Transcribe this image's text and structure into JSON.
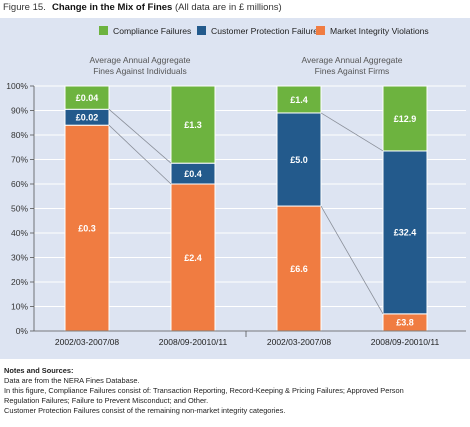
{
  "figure": {
    "number": "Figure 15.",
    "title": "Change in the Mix of Fines",
    "subtitle": "(All data are in £ millions)"
  },
  "chart_data": {
    "type": "bar",
    "stacked": true,
    "percent_scale": true,
    "legend": {
      "position": "top",
      "entries": [
        {
          "name": "Compliance Failures",
          "color": "#6db33f"
        },
        {
          "name": "Customer Protection Failures",
          "color": "#235a8c"
        },
        {
          "name": "Market Integrity Violations",
          "color": "#f07c41"
        }
      ]
    },
    "y_axis": {
      "range": [
        0,
        100
      ],
      "ticks": [
        "0%",
        "10%",
        "20%",
        "30%",
        "40%",
        "50%",
        "60%",
        "70%",
        "80%",
        "90%",
        "100%"
      ],
      "gridlines": true
    },
    "groups": [
      {
        "title": "Average Annual Aggregate Fines Against Individuals",
        "title_lines": [
          "Average Annual Aggregate",
          "Fines Against Individuals"
        ],
        "bars": [
          {
            "category": "2002/03-2007/08",
            "segments": [
              {
                "series": "Market Integrity Violations",
                "label": "£0.3",
                "value": 0.3,
                "share": 84
              },
              {
                "series": "Customer Protection Failures",
                "label": "£0.02",
                "value": 0.02,
                "share": 6.5
              },
              {
                "series": "Compliance Failures",
                "label": "£0.04",
                "value": 0.04,
                "share": 9.5
              }
            ]
          },
          {
            "category": "2008/09-20010/11",
            "segments": [
              {
                "series": "Market Integrity Violations",
                "label": "£2.4",
                "value": 2.4,
                "share": 60
              },
              {
                "series": "Customer Protection Failures",
                "label": "£0.4",
                "value": 0.4,
                "share": 8.5
              },
              {
                "series": "Compliance Failures",
                "label": "£1.3",
                "value": 1.3,
                "share": 31.5
              }
            ]
          }
        ]
      },
      {
        "title": "Average Annual Aggregate Fines Against Firms",
        "title_lines": [
          "Average Annual Aggregate",
          "Fines Against Firms"
        ],
        "bars": [
          {
            "category": "2002/03-2007/08",
            "segments": [
              {
                "series": "Market Integrity Violations",
                "label": "£6.6",
                "value": 6.6,
                "share": 51
              },
              {
                "series": "Customer Protection Failures",
                "label": "£5.0",
                "value": 5.0,
                "share": 38
              },
              {
                "series": "Compliance Failures",
                "label": "£1.4",
                "value": 1.4,
                "share": 11
              }
            ]
          },
          {
            "category": "2008/09-20010/11",
            "segments": [
              {
                "series": "Market Integrity Violations",
                "label": "£3.8",
                "value": 3.8,
                "share": 7
              },
              {
                "series": "Customer Protection Failures",
                "label": "£32.4",
                "value": 32.4,
                "share": 66.5
              },
              {
                "series": "Compliance Failures",
                "label": "£12.9",
                "value": 12.9,
                "share": 26.5
              }
            ]
          }
        ]
      }
    ]
  },
  "notes": {
    "heading": "Notes and Sources:",
    "lines": [
      "Data are from the NERA Fines Database.",
      "In this figure, Compliance Failures consist of: Transaction Reporting, Record-Keeping & Pricing Failures; Approved Person",
      "Regulation Failures; Failure to Prevent Misconduct; and Other.",
      "Customer Protection Failures consist of the remaining non-market integrity categories."
    ]
  }
}
